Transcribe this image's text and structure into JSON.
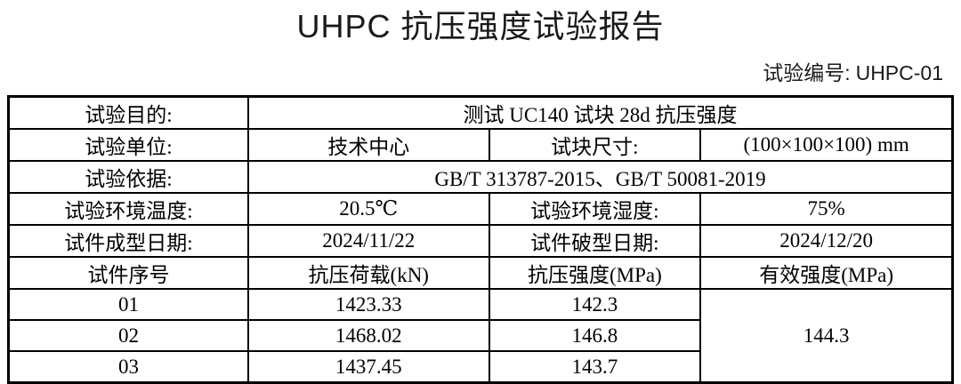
{
  "page": {
    "title": "UHPC 抗压强度试验报告",
    "report_no_label": "试验编号:",
    "report_no_value": "UHPC-01"
  },
  "info": {
    "purpose_label": "试验目的:",
    "purpose_value": "测试 UC140 试块 28d 抗压强度",
    "unit_label": "试验单位:",
    "unit_value": "技术中心",
    "size_label": "试块尺寸:",
    "size_value": "(100×100×100) mm",
    "basis_label": "试验依据:",
    "basis_value": "GB/T 313787-2015、GB/T 50081-2019",
    "temp_label": "试验环境温度:",
    "temp_value": "20.5℃",
    "humidity_label": "试验环境湿度:",
    "humidity_value": "75%",
    "mold_date_label": "试件成型日期:",
    "mold_date_value": "2024/11/22",
    "break_date_label": "试件破型日期:",
    "break_date_value": "2024/12/20"
  },
  "results": {
    "headers": {
      "specimen_no": "试件序号",
      "load": "抗压荷载(kN)",
      "strength": "抗压强度(MPa)",
      "effective": "有效强度(MPa)"
    },
    "rows": [
      {
        "no": "01",
        "load_kn": "1423.33",
        "strength_mpa": "142.3"
      },
      {
        "no": "02",
        "load_kn": "1468.02",
        "strength_mpa": "146.8"
      },
      {
        "no": "03",
        "load_kn": "1437.45",
        "strength_mpa": "143.7"
      }
    ],
    "effective_strength_mpa": "144.3"
  }
}
